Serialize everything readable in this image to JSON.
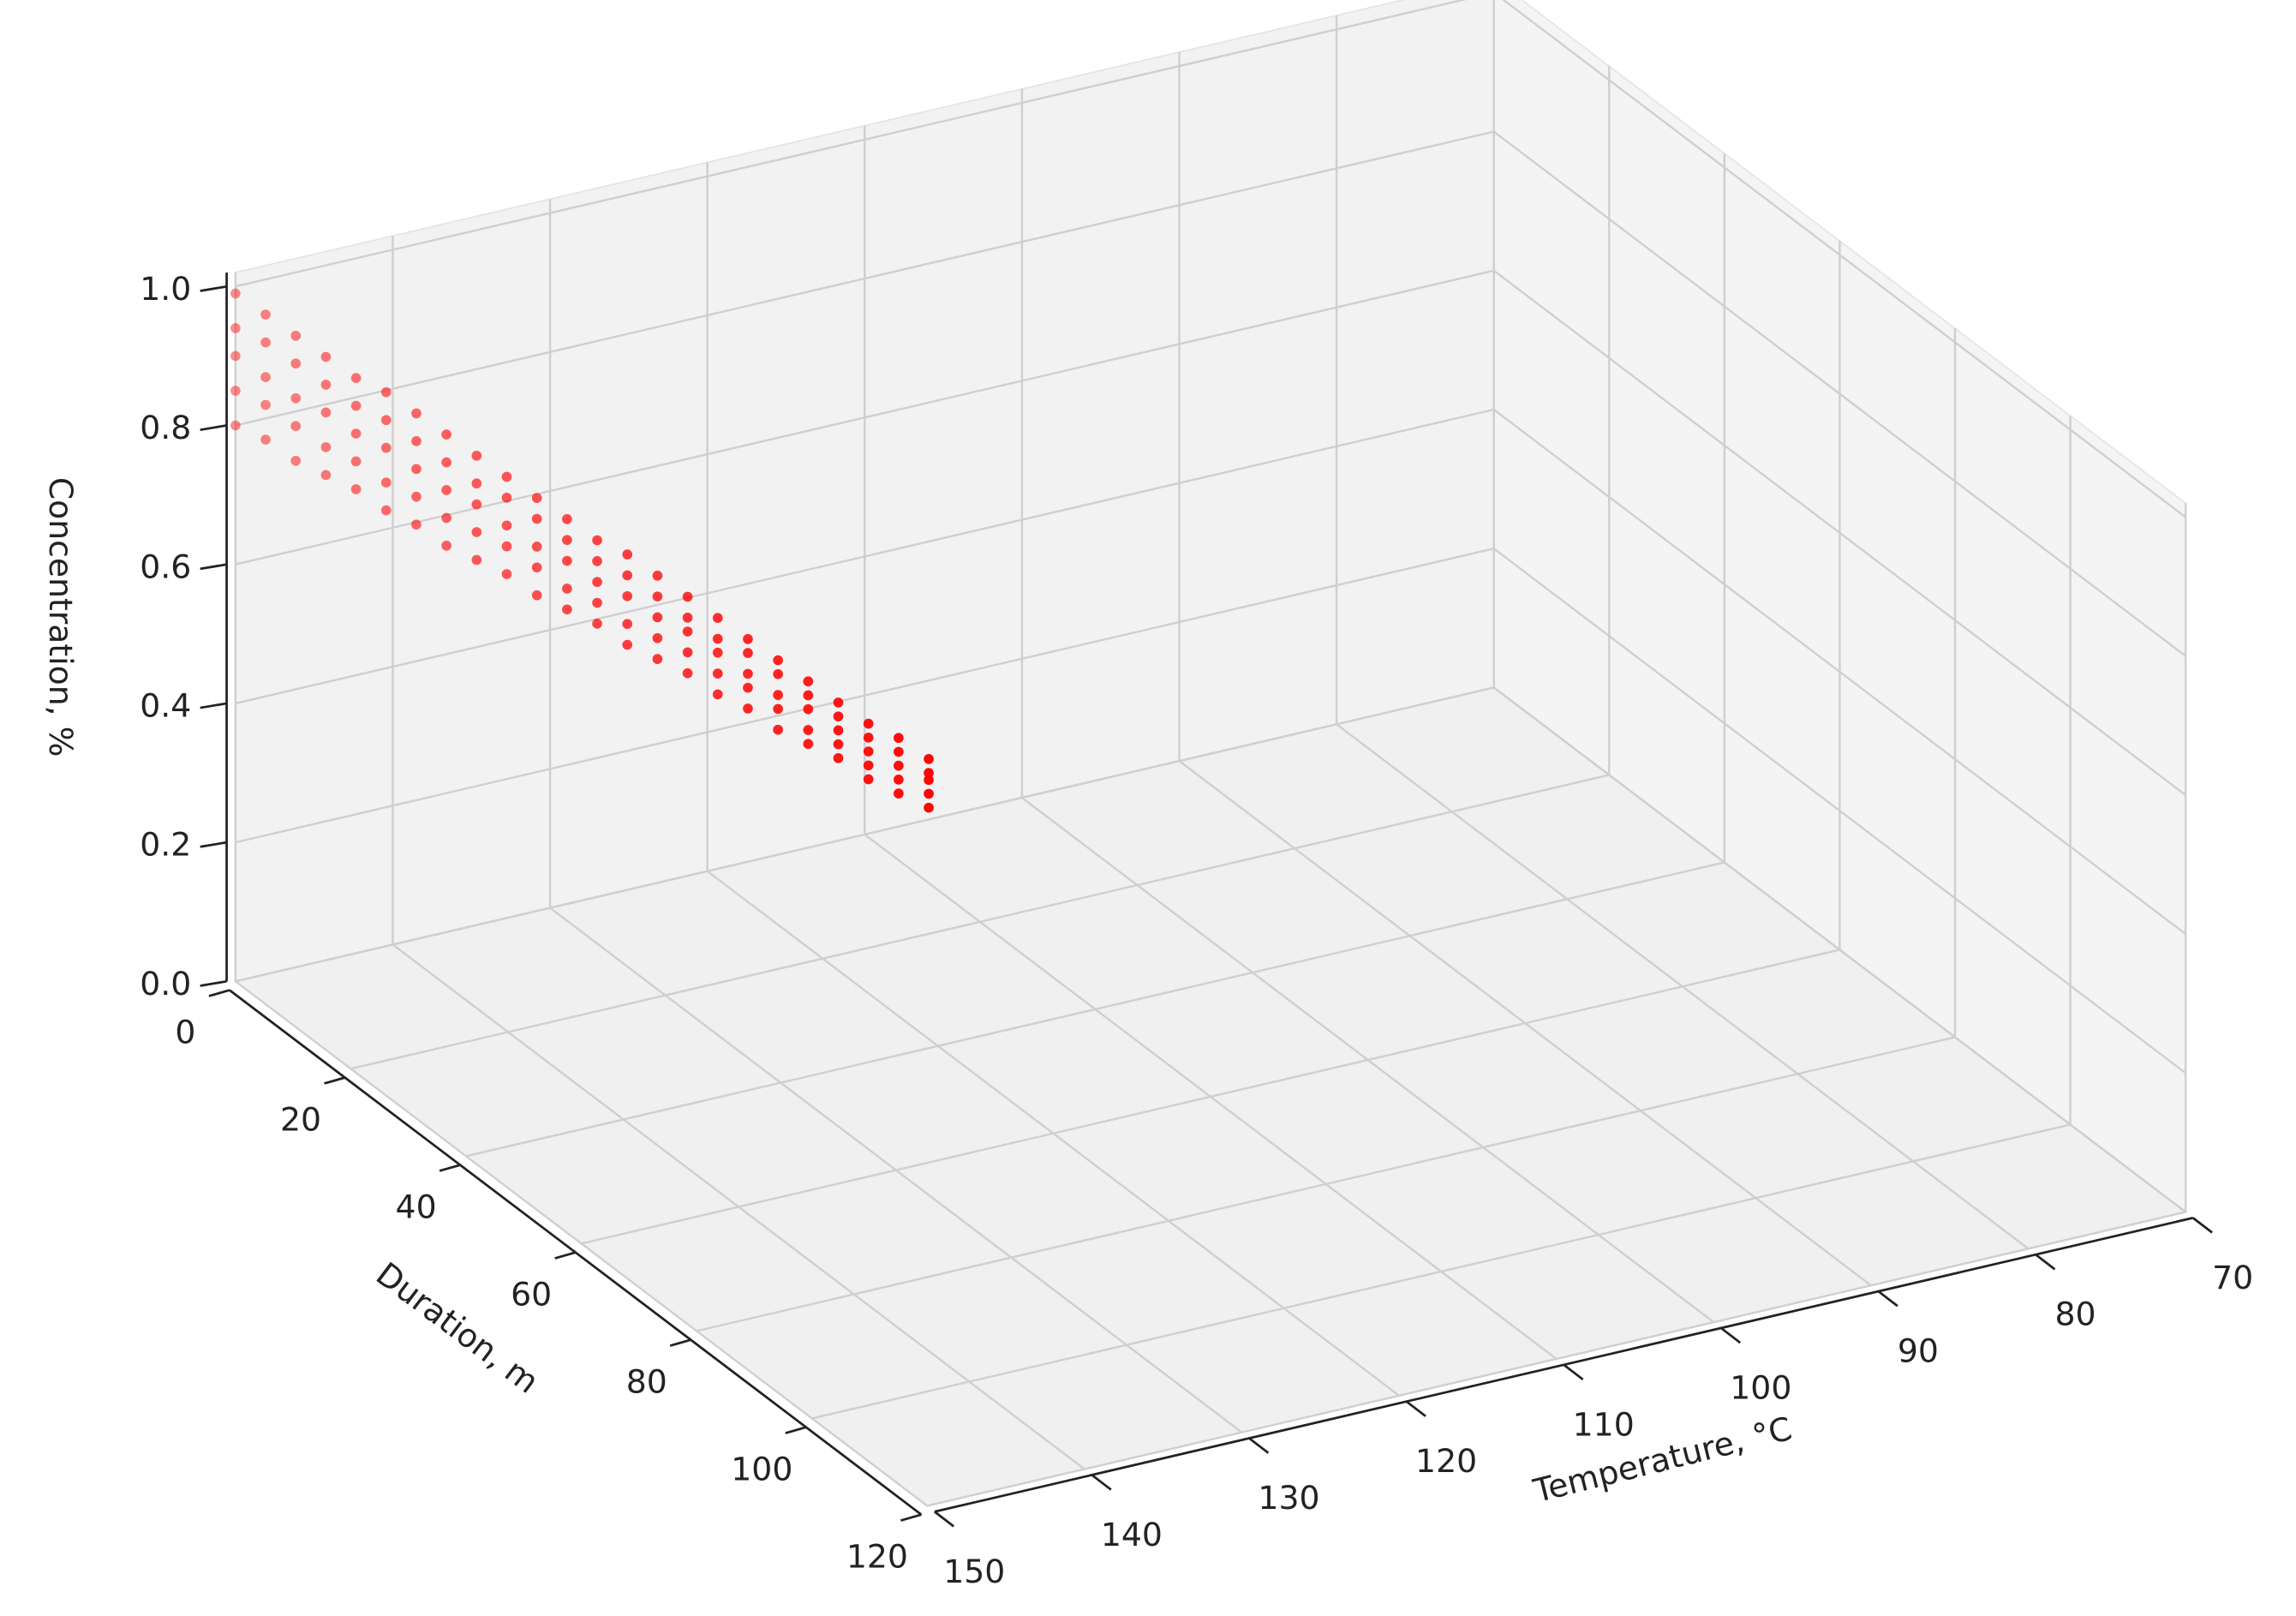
{
  "chart_data": {
    "type": "scatter3d",
    "x_label": "Temperature, °C",
    "y_label": "Duration, m",
    "z_label": "Concentration, %",
    "color": "#ff0000",
    "xlim": [
      70,
      150
    ],
    "ylim": [
      0,
      120
    ],
    "zlim": [
      0,
      1
    ],
    "xticks": [
      70,
      80,
      90,
      100,
      110,
      120,
      130,
      140,
      150
    ],
    "yticks": [
      0,
      20,
      40,
      60,
      80,
      100,
      120
    ],
    "zticks": [
      {
        "value": 0,
        "label": "0.0"
      },
      0.2,
      0.4,
      0.6,
      0.8,
      {
        "value": 1,
        "label": "1.0"
      }
    ],
    "grid": true,
    "x": [
      150,
      150,
      150,
      150,
      150,
      149,
      149,
      149,
      149,
      149,
      148,
      148,
      148,
      148,
      148,
      147,
      147,
      147,
      147,
      147,
      146,
      146,
      146,
      146,
      146,
      145,
      145,
      145,
      145,
      145,
      144,
      144,
      144,
      144,
      144,
      143,
      143,
      143,
      143,
      143,
      142,
      142,
      142,
      142,
      142,
      141,
      141,
      141,
      141,
      141,
      140,
      140,
      140,
      140,
      140,
      139,
      139,
      139,
      139,
      139,
      138,
      138,
      138,
      138,
      138,
      137,
      137,
      137,
      137,
      137,
      136,
      136,
      136,
      136,
      136,
      135,
      135,
      135,
      135,
      135,
      134,
      134,
      134,
      134,
      134,
      133,
      133,
      133,
      133,
      133,
      132,
      132,
      132,
      132,
      132,
      131,
      131,
      131,
      131,
      131,
      130,
      130,
      130,
      130,
      130,
      129,
      129,
      129,
      129,
      129,
      128,
      128,
      128,
      128,
      128,
      127,
      127,
      127,
      127,
      127
    ],
    "y": [
      0,
      0,
      0,
      0,
      0,
      2.5,
      2.5,
      2.5,
      2.5,
      2.5,
      5,
      5,
      5,
      5,
      5,
      7.5,
      7.5,
      7.5,
      7.5,
      7.5,
      10,
      10,
      10,
      10,
      10,
      12.5,
      12.5,
      12.5,
      12.5,
      12.5,
      15,
      15,
      15,
      15,
      15,
      17.5,
      17.5,
      17.5,
      17.5,
      17.5,
      20,
      20,
      20,
      20,
      20,
      22.5,
      22.5,
      22.5,
      22.5,
      22.5,
      25,
      25,
      25,
      25,
      25,
      27.5,
      27.5,
      27.5,
      27.5,
      27.5,
      30,
      30,
      30,
      30,
      30,
      32.5,
      32.5,
      32.5,
      32.5,
      32.5,
      35,
      35,
      35,
      35,
      35,
      37.5,
      37.5,
      37.5,
      37.5,
      37.5,
      40,
      40,
      40,
      40,
      40,
      42.5,
      42.5,
      42.5,
      42.5,
      42.5,
      45,
      45,
      45,
      45,
      45,
      47.5,
      47.5,
      47.5,
      47.5,
      47.5,
      50,
      50,
      50,
      50,
      50,
      52.5,
      52.5,
      52.5,
      52.5,
      52.5,
      55,
      55,
      55,
      55,
      55,
      57.5,
      57.5,
      57.5,
      57.5,
      57.5
    ],
    "z": [
      0.99,
      0.94,
      0.9,
      0.85,
      0.8,
      0.97,
      0.93,
      0.88,
      0.84,
      0.79,
      0.95,
      0.91,
      0.86,
      0.82,
      0.77,
      0.93,
      0.89,
      0.85,
      0.8,
      0.76,
      0.91,
      0.87,
      0.83,
      0.79,
      0.75,
      0.9,
      0.86,
      0.82,
      0.77,
      0.73,
      0.88,
      0.84,
      0.8,
      0.76,
      0.72,
      0.86,
      0.82,
      0.78,
      0.74,
      0.7,
      0.84,
      0.8,
      0.77,
      0.73,
      0.69,
      0.82,
      0.79,
      0.75,
      0.72,
      0.68,
      0.8,
      0.77,
      0.73,
      0.7,
      0.66,
      0.78,
      0.75,
      0.72,
      0.68,
      0.65,
      0.76,
      0.73,
      0.7,
      0.67,
      0.64,
      0.75,
      0.72,
      0.69,
      0.65,
      0.62,
      0.73,
      0.7,
      0.67,
      0.64,
      0.61,
      0.71,
      0.68,
      0.66,
      0.63,
      0.6,
      0.69,
      0.66,
      0.64,
      0.61,
      0.58,
      0.67,
      0.65,
      0.62,
      0.6,
      0.57,
      0.65,
      0.63,
      0.6,
      0.58,
      0.55,
      0.63,
      0.61,
      0.59,
      0.56,
      0.54,
      0.61,
      0.59,
      0.57,
      0.55,
      0.53,
      0.59,
      0.57,
      0.55,
      0.53,
      0.51,
      0.58,
      0.56,
      0.54,
      0.52,
      0.5,
      0.56,
      0.54,
      0.53,
      0.51,
      0.49
    ]
  }
}
